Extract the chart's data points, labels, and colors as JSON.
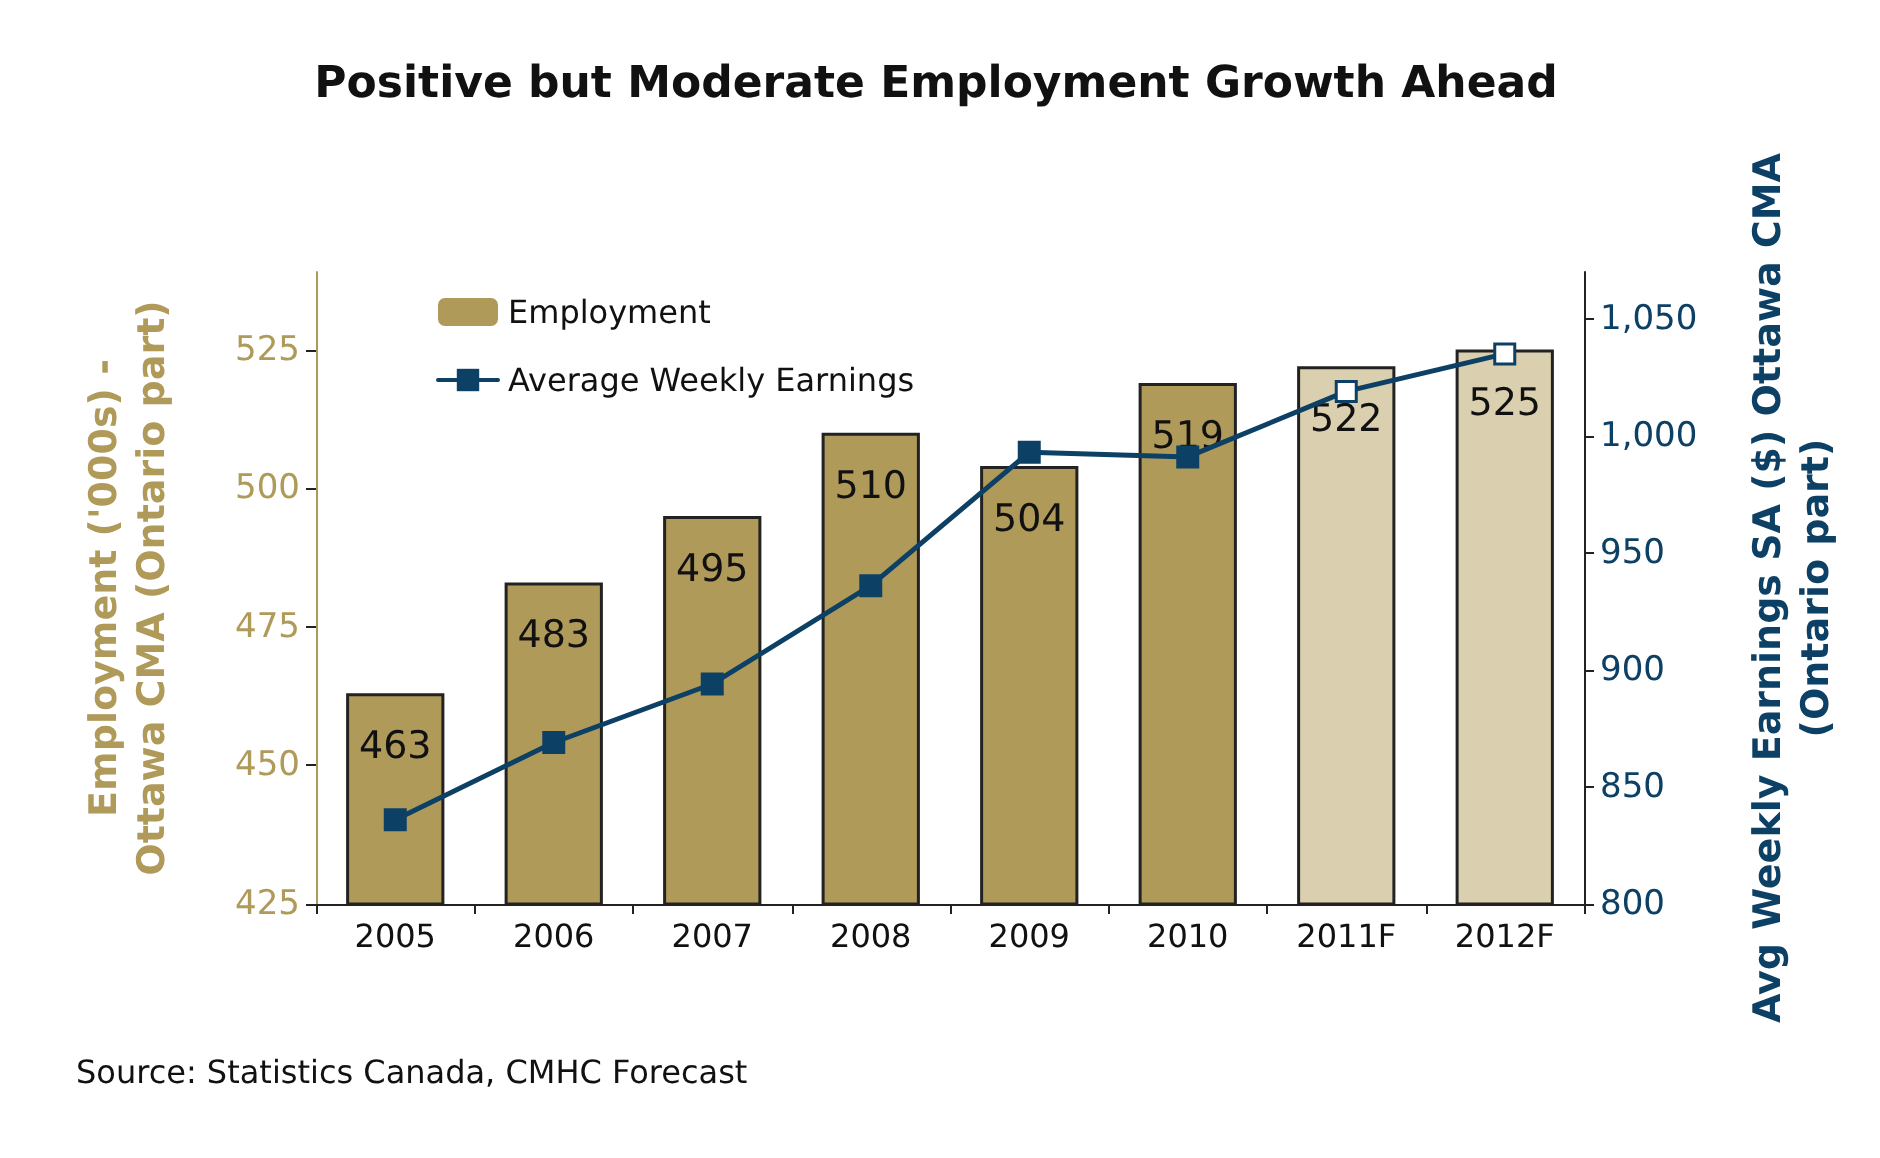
{
  "chart_data": {
    "type": "bar",
    "title": "Positive but Moderate Employment Growth Ahead",
    "ylabel": "Employment ('000s) -\nOttawa CMA (Ontario part)",
    "y2label": "Avg Weekly Earnings SA ($) Ottawa CMA\n(Ontario part)",
    "annotations": [
      "Source: Statistics Canada, CMHC Forecast"
    ],
    "categories": [
      "2005",
      "2006",
      "2007",
      "2008",
      "2009",
      "2010",
      "2011F",
      "2012F"
    ],
    "series": [
      {
        "name": "Employment",
        "color": "#b09a5a",
        "value_labels": [
          "463",
          "483",
          "495",
          "510",
          "504",
          "519",
          "522",
          "525"
        ],
        "colors": [
          "#b09a5a",
          "#b09a5a",
          "#b09a5a",
          "#b09a5a",
          "#b09a5a",
          "#b09a5a",
          "#dacfae",
          "#dacfae"
        ],
        "values": [
          463,
          483,
          495,
          510,
          504,
          519,
          522,
          525
        ]
      },
      {
        "name": "Average Weekly Earnings",
        "type": "line",
        "axis": "y2",
        "color": "#0d4065",
        "colors": [
          "#0d4065",
          "#0d4065",
          "#0d4065",
          "#0d4065",
          "#0d4065",
          "#0d4065",
          "#ffffff",
          "#ffffff"
        ],
        "values": [
          836,
          869,
          894,
          936,
          993,
          991,
          1019,
          1035
        ]
      }
    ],
    "ylim": [
      425,
      539
    ],
    "yticks": [
      425,
      450,
      475,
      500,
      525
    ],
    "y2lim": [
      800,
      1070
    ],
    "y2ticks": [
      800,
      850,
      900,
      950,
      {
        "value": 1000,
        "label": "1,000"
      },
      {
        "value": 1050,
        "label": "1,050"
      }
    ],
    "grid": false,
    "legend": "top left",
    "marker": "square"
  }
}
